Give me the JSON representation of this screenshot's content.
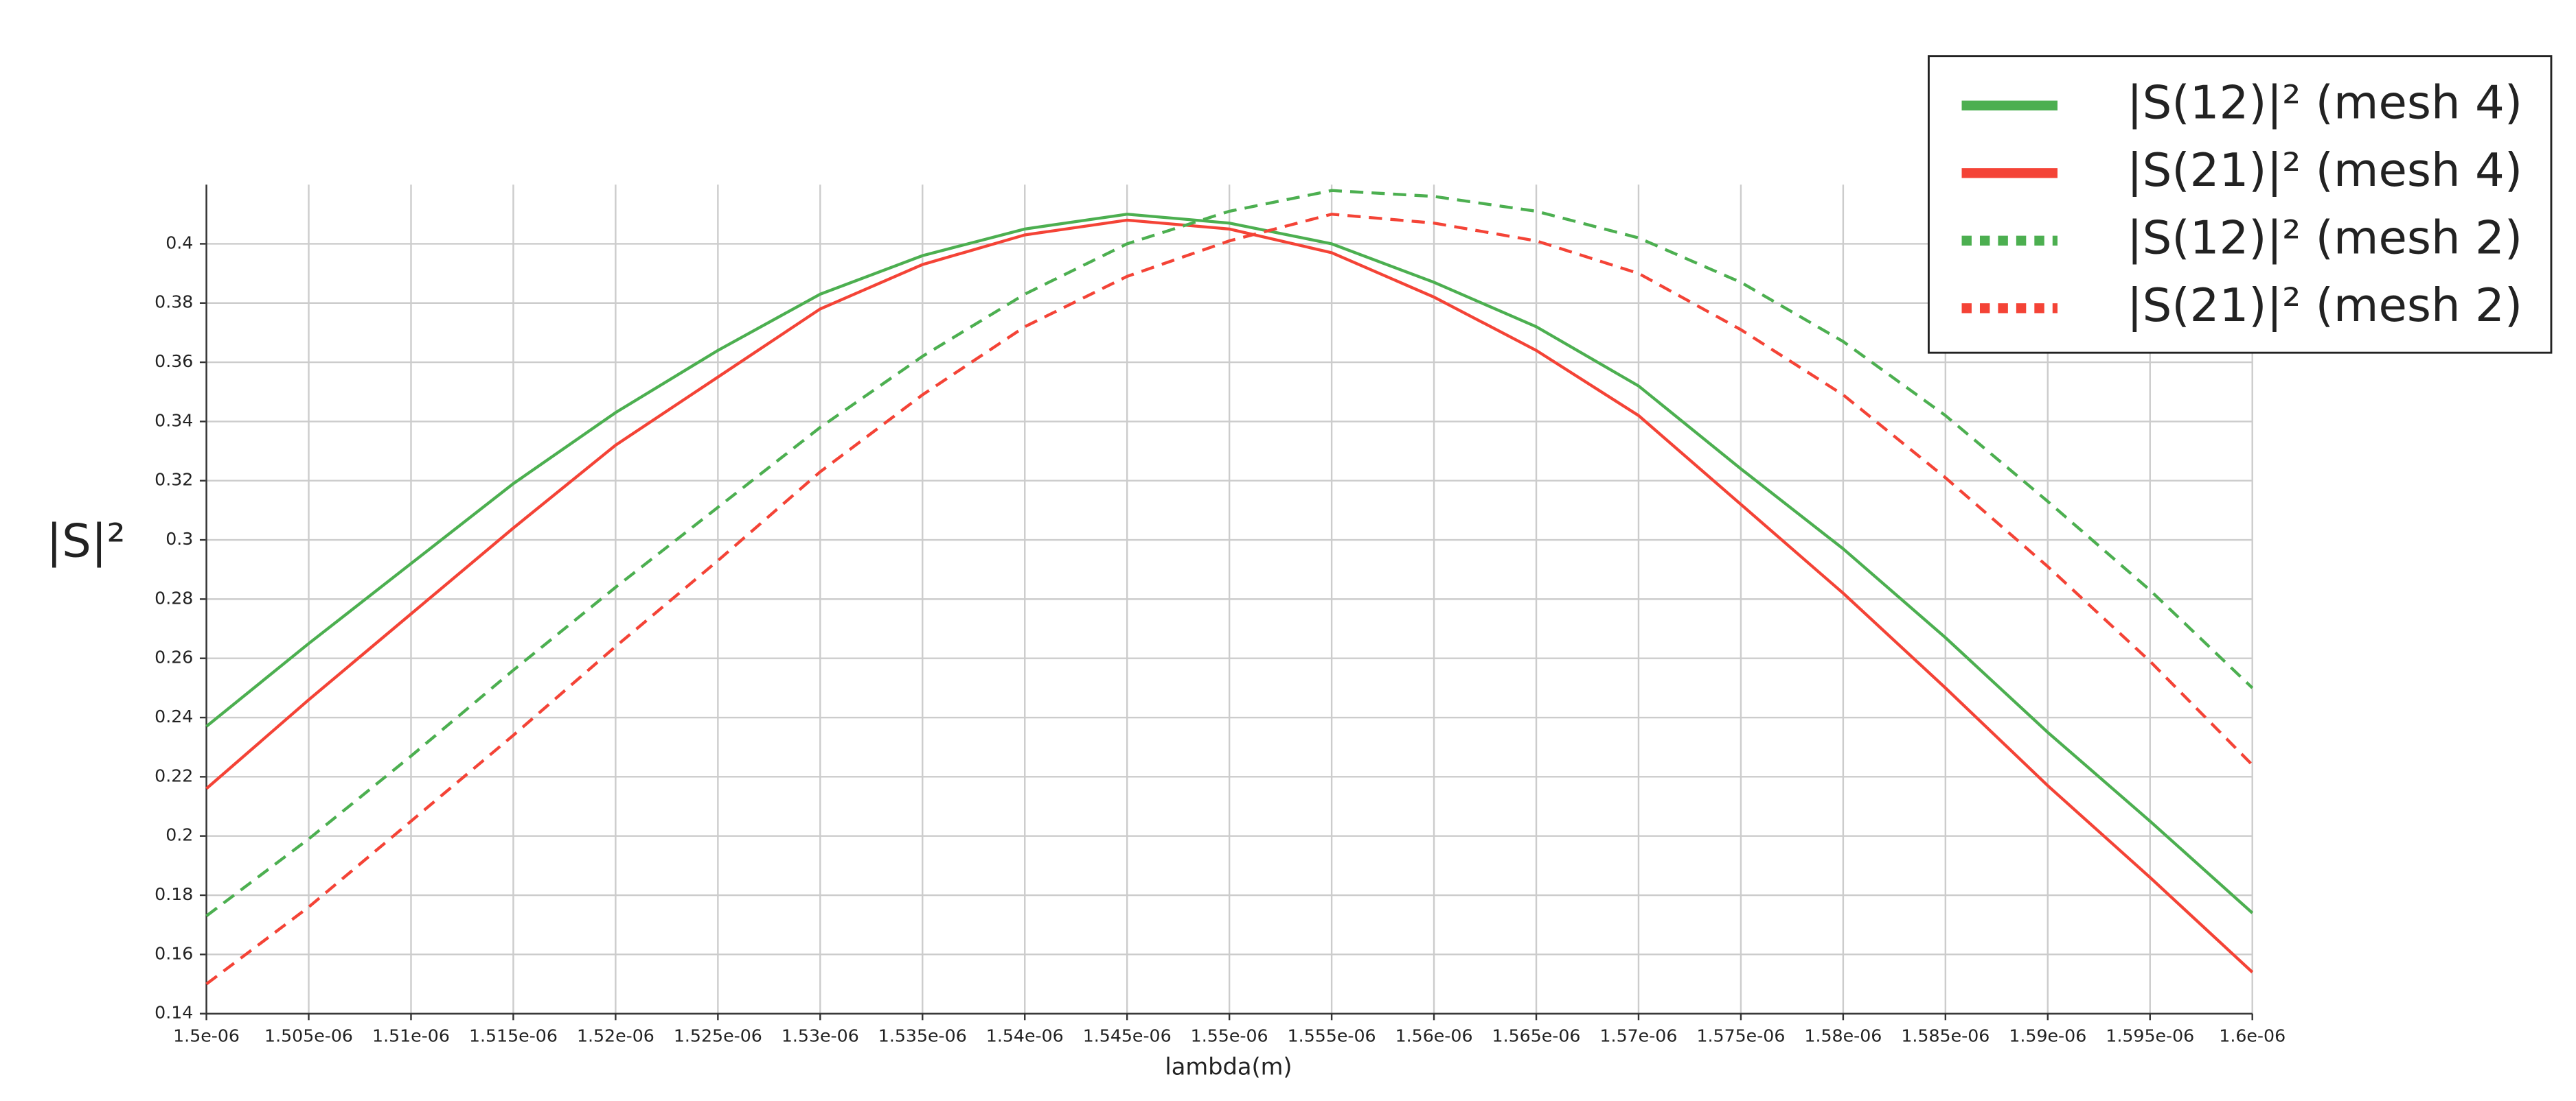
{
  "chart_data": {
    "type": "line",
    "x_label": "lambda(m)",
    "y_label": "|S|²",
    "x": [
      1.5e-06,
      1.505e-06,
      1.51e-06,
      1.515e-06,
      1.52e-06,
      1.525e-06,
      1.53e-06,
      1.535e-06,
      1.54e-06,
      1.545e-06,
      1.55e-06,
      1.555e-06,
      1.56e-06,
      1.565e-06,
      1.57e-06,
      1.575e-06,
      1.58e-06,
      1.585e-06,
      1.59e-06,
      1.595e-06,
      1.6e-06
    ],
    "series": [
      {
        "name": "|S(12)|² (mesh 4)",
        "color": "#4caf50",
        "linestyle": "solid",
        "values": [
          0.237,
          0.265,
          0.292,
          0.319,
          0.343,
          0.364,
          0.383,
          0.396,
          0.405,
          0.41,
          0.407,
          0.4,
          0.387,
          0.372,
          0.352,
          0.324,
          0.297,
          0.267,
          0.235,
          0.205,
          0.174
        ]
      },
      {
        "name": "|S(21)|² (mesh 4)",
        "color": "#f44336",
        "linestyle": "solid",
        "values": [
          0.216,
          0.246,
          0.275,
          0.304,
          0.332,
          0.355,
          0.378,
          0.393,
          0.403,
          0.408,
          0.405,
          0.397,
          0.382,
          0.364,
          0.342,
          0.312,
          0.282,
          0.25,
          0.217,
          0.186,
          0.154
        ]
      },
      {
        "name": "|S(12)|² (mesh 2)",
        "color": "#4caf50",
        "linestyle": "dashed",
        "values": [
          0.173,
          0.199,
          0.227,
          0.256,
          0.284,
          0.311,
          0.338,
          0.362,
          0.383,
          0.4,
          0.411,
          0.418,
          0.416,
          0.411,
          0.402,
          0.387,
          0.367,
          0.342,
          0.313,
          0.283,
          0.25
        ]
      },
      {
        "name": "|S(21)|² (mesh 2)",
        "color": "#f44336",
        "linestyle": "dashed",
        "values": [
          0.15,
          0.176,
          0.205,
          0.234,
          0.264,
          0.293,
          0.323,
          0.349,
          0.372,
          0.389,
          0.401,
          0.41,
          0.407,
          0.401,
          0.39,
          0.371,
          0.349,
          0.321,
          0.291,
          0.259,
          0.224
        ]
      }
    ],
    "xlim": [
      1.5e-06,
      1.6e-06
    ],
    "xticks": [
      {
        "value": 1.5e-06,
        "label": "1.5e-06"
      },
      {
        "value": 1.505e-06,
        "label": "1.505e-06"
      },
      {
        "value": 1.51e-06,
        "label": "1.51e-06"
      },
      {
        "value": 1.515e-06,
        "label": "1.515e-06"
      },
      {
        "value": 1.52e-06,
        "label": "1.52e-06"
      },
      {
        "value": 1.525e-06,
        "label": "1.525e-06"
      },
      {
        "value": 1.53e-06,
        "label": "1.53e-06"
      },
      {
        "value": 1.535e-06,
        "label": "1.535e-06"
      },
      {
        "value": 1.54e-06,
        "label": "1.54e-06"
      },
      {
        "value": 1.545e-06,
        "label": "1.545e-06"
      },
      {
        "value": 1.55e-06,
        "label": "1.55e-06"
      },
      {
        "value": 1.555e-06,
        "label": "1.555e-06"
      },
      {
        "value": 1.56e-06,
        "label": "1.56e-06"
      },
      {
        "value": 1.565e-06,
        "label": "1.565e-06"
      },
      {
        "value": 1.57e-06,
        "label": "1.57e-06"
      },
      {
        "value": 1.575e-06,
        "label": "1.575e-06"
      },
      {
        "value": 1.58e-06,
        "label": "1.58e-06"
      },
      {
        "value": 1.585e-06,
        "label": "1.585e-06"
      },
      {
        "value": 1.59e-06,
        "label": "1.59e-06"
      },
      {
        "value": 1.595e-06,
        "label": "1.595e-06"
      },
      {
        "value": 1.6e-06,
        "label": "1.6e-06"
      }
    ],
    "ylim": [
      0.14,
      0.42
    ],
    "yticks": [
      0.14,
      0.16,
      0.18,
      0.2,
      0.22,
      0.24,
      0.26,
      0.28,
      0.3,
      0.32,
      0.34,
      0.36,
      0.38,
      0.4
    ],
    "grid": true,
    "legend": "upper right"
  }
}
